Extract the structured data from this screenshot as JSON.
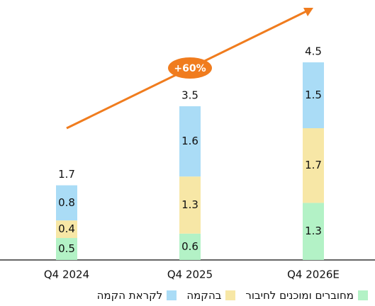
{
  "chart_data": {
    "type": "stacked_bar",
    "categories": [
      "Q4 2024",
      "Q4 2025",
      "Q4 2026E"
    ],
    "series": [
      {
        "name": "מחוברים ומוכנים לחיבור",
        "color": "#b3f2c6",
        "values": [
          0.5,
          0.6,
          1.3
        ]
      },
      {
        "name": "בהקמה",
        "color": "#f7e7a6",
        "values": [
          0.4,
          1.3,
          1.7
        ]
      },
      {
        "name": "לקראת הקמה",
        "color": "#aadcf6",
        "values": [
          0.8,
          1.6,
          1.5
        ]
      }
    ],
    "totals": [
      1.7,
      3.5,
      4.5
    ],
    "annotation": "+60%",
    "arrow_color": "#f07c1e"
  }
}
